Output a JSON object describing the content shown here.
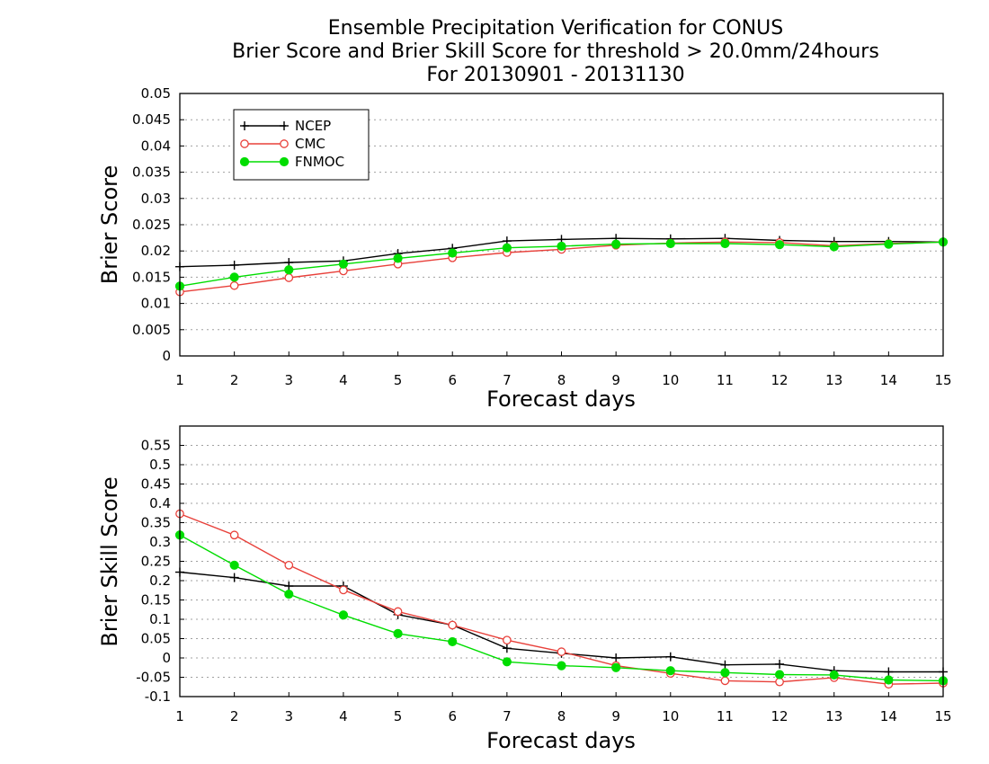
{
  "title": {
    "line1": "Ensemble Precipitation Verification for CONUS",
    "line2": "Brier Score and Brier Skill Score for threshold > 20.0mm/24hours",
    "line3": "For 20130901 - 20131130"
  },
  "colors": {
    "NCEP": "#000000",
    "CMC": "#e8403a",
    "FNMOC": "#00dd00",
    "grid": "#a0a0a0"
  },
  "chart_data": [
    {
      "type": "line",
      "xlabel": "Forecast days",
      "ylabel": "Brier Score",
      "x": [
        1,
        2,
        3,
        4,
        5,
        6,
        7,
        8,
        9,
        10,
        11,
        12,
        13,
        14,
        15
      ],
      "xlim": [
        1,
        15
      ],
      "ylim": [
        0,
        0.05
      ],
      "yticks": [
        0,
        0.005,
        0.01,
        0.015,
        0.02,
        0.025,
        0.03,
        0.035,
        0.04,
        0.045,
        0.05
      ],
      "ytick_labels": [
        "0",
        "0.005",
        "0.01",
        "0.015",
        "0.02",
        "0.025",
        "0.03",
        "0.035",
        "0.04",
        "0.045",
        "0.05"
      ],
      "grid": true,
      "legend": "top-left",
      "series": [
        {
          "name": "NCEP",
          "marker": "plus",
          "values": [
            0.017,
            0.0173,
            0.0178,
            0.0181,
            0.0195,
            0.0205,
            0.0219,
            0.0222,
            0.0224,
            0.0223,
            0.0224,
            0.022,
            0.0218,
            0.0218,
            0.0217
          ]
        },
        {
          "name": "CMC",
          "marker": "open-circle",
          "values": [
            0.0122,
            0.0134,
            0.0149,
            0.0162,
            0.0175,
            0.0187,
            0.0197,
            0.0203,
            0.0211,
            0.0215,
            0.0217,
            0.0216,
            0.021,
            0.0214,
            0.0217
          ]
        },
        {
          "name": "FNMOC",
          "marker": "filled-circle",
          "values": [
            0.0133,
            0.015,
            0.0164,
            0.0175,
            0.0186,
            0.0196,
            0.0206,
            0.0209,
            0.0213,
            0.0214,
            0.0214,
            0.0212,
            0.0208,
            0.0213,
            0.0217
          ]
        }
      ]
    },
    {
      "type": "line",
      "xlabel": "Forecast days",
      "ylabel": "Brier Skill Score",
      "x": [
        1,
        2,
        3,
        4,
        5,
        6,
        7,
        8,
        9,
        10,
        11,
        12,
        13,
        14,
        15
      ],
      "xlim": [
        1,
        15
      ],
      "ylim": [
        -0.1,
        0.6
      ],
      "yticks": [
        -0.1,
        -0.05,
        0,
        0.05,
        0.1,
        0.15,
        0.2,
        0.25,
        0.3,
        0.35,
        0.4,
        0.45,
        0.5,
        0.55
      ],
      "ytick_labels": [
        "-0.1",
        "-0.05",
        "0",
        "0.05",
        "0.1",
        "0.15",
        "0.2",
        "0.25",
        "0.3",
        "0.35",
        "0.4",
        "0.45",
        "0.5",
        "0.55"
      ],
      "grid": true,
      "series": [
        {
          "name": "NCEP",
          "marker": "plus",
          "values": [
            0.222,
            0.208,
            0.186,
            0.186,
            0.112,
            0.085,
            0.025,
            0.012,
            0.0,
            0.003,
            -0.018,
            -0.016,
            -0.033,
            -0.036,
            -0.036
          ]
        },
        {
          "name": "CMC",
          "marker": "open-circle",
          "values": [
            0.373,
            0.318,
            0.24,
            0.176,
            0.12,
            0.085,
            0.046,
            0.016,
            -0.02,
            -0.04,
            -0.059,
            -0.062,
            -0.051,
            -0.068,
            -0.065
          ]
        },
        {
          "name": "FNMOC",
          "marker": "filled-circle",
          "values": [
            0.318,
            0.24,
            0.165,
            0.111,
            0.063,
            0.042,
            -0.01,
            -0.02,
            -0.025,
            -0.033,
            -0.038,
            -0.043,
            -0.044,
            -0.057,
            -0.059
          ]
        }
      ]
    }
  ]
}
